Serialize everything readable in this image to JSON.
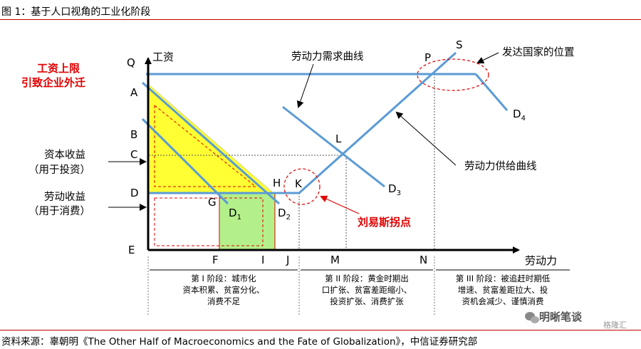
{
  "header": {
    "title": "图 1：基于人口视角的工业化阶段"
  },
  "footer": {
    "source": "资料来源：辜朝明《The Other Half of Macroeconomics and the Fate of Globalization》，中信证券研究部"
  },
  "watermark": {
    "text": "明晰笔谈",
    "subtext": "格隆汇"
  },
  "diagram": {
    "axes": {
      "y_label": "工资",
      "x_label": "劳动力"
    },
    "points": {
      "Q": "Q",
      "A": "A",
      "B": "B",
      "C": "C",
      "D": "D",
      "E": "E",
      "F": "F",
      "G": "G",
      "H": "H",
      "I": "I",
      "J": "J",
      "K": "K",
      "L": "L",
      "M": "M",
      "N": "N",
      "P": "P",
      "S": "S"
    },
    "curve_labels": {
      "D1": {
        "base": "D",
        "sub": "1"
      },
      "D2": {
        "base": "D",
        "sub": "2"
      },
      "D3": {
        "base": "D",
        "sub": "3"
      },
      "D4": {
        "base": "D",
        "sub": "4"
      }
    },
    "left_labels": {
      "wage_cap_line1": "工资上限",
      "wage_cap_line2": "引致企业外迁",
      "capital_income": "资本收益",
      "capital_income_note": "（用于投资）",
      "labor_income": "劳动收益",
      "labor_income_note": "（用于消费）"
    },
    "callouts": {
      "demand_curve": "劳动力需求曲线",
      "developed_position": "发达国家的位置",
      "supply_curve": "劳动力供给曲线",
      "lewis_point": "刘易斯拐点"
    },
    "stages": [
      {
        "l1": "第 I 阶段：城市化",
        "l2": "资本积累、贫富分化、",
        "l3": "消费不足"
      },
      {
        "l1": "第 II 阶段：黄金时期出",
        "l2": "口扩张、贫富差距缩小、",
        "l3": "投资扩张、消费扩张"
      },
      {
        "l1": "第 III 阶段：被追赶时期低",
        "l2": "增速、贫富差距拉大、投",
        "l3": "资机会减少、谨慎消费"
      }
    ],
    "colors": {
      "curve": "#5b9bd5",
      "axis": "#000000",
      "highlight_red": "#e00000",
      "yellow_fill": "#ffff33",
      "green_fill": "#b3f08a"
    }
  }
}
